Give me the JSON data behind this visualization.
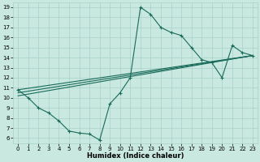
{
  "xlabel": "Humidex (Indice chaleur)",
  "bg_color": "#c8e8e0",
  "line_color": "#1a6b5a",
  "grid_color": "#a8d0c8",
  "xlim": [
    -0.5,
    23.5
  ],
  "ylim": [
    5.5,
    19.5
  ],
  "xticks": [
    0,
    1,
    2,
    3,
    4,
    5,
    6,
    7,
    8,
    9,
    10,
    11,
    12,
    13,
    14,
    15,
    16,
    17,
    18,
    19,
    20,
    21,
    22,
    23
  ],
  "yticks": [
    6,
    7,
    8,
    9,
    10,
    11,
    12,
    13,
    14,
    15,
    16,
    17,
    18,
    19
  ],
  "line1_x": [
    0,
    1,
    2,
    3,
    4,
    5,
    6,
    7,
    8,
    9,
    10,
    11,
    12,
    13,
    14,
    15,
    16,
    17,
    18,
    19,
    20,
    21,
    22,
    23
  ],
  "line1_y": [
    10.8,
    10.0,
    9.0,
    8.5,
    7.7,
    6.7,
    6.5,
    6.4,
    5.8,
    9.4,
    10.5,
    12.0,
    19.0,
    18.3,
    17.0,
    16.5,
    16.2,
    15.0,
    13.8,
    13.5,
    12.0,
    15.2,
    14.5,
    14.2
  ],
  "line2_x": [
    0,
    23
  ],
  "line2_y": [
    10.8,
    14.2
  ],
  "line3_x": [
    0,
    23
  ],
  "line3_y": [
    10.5,
    14.2
  ],
  "line4_x": [
    0,
    23
  ],
  "line4_y": [
    10.2,
    14.2
  ],
  "xlabel_fontsize": 6,
  "tick_fontsize": 5
}
